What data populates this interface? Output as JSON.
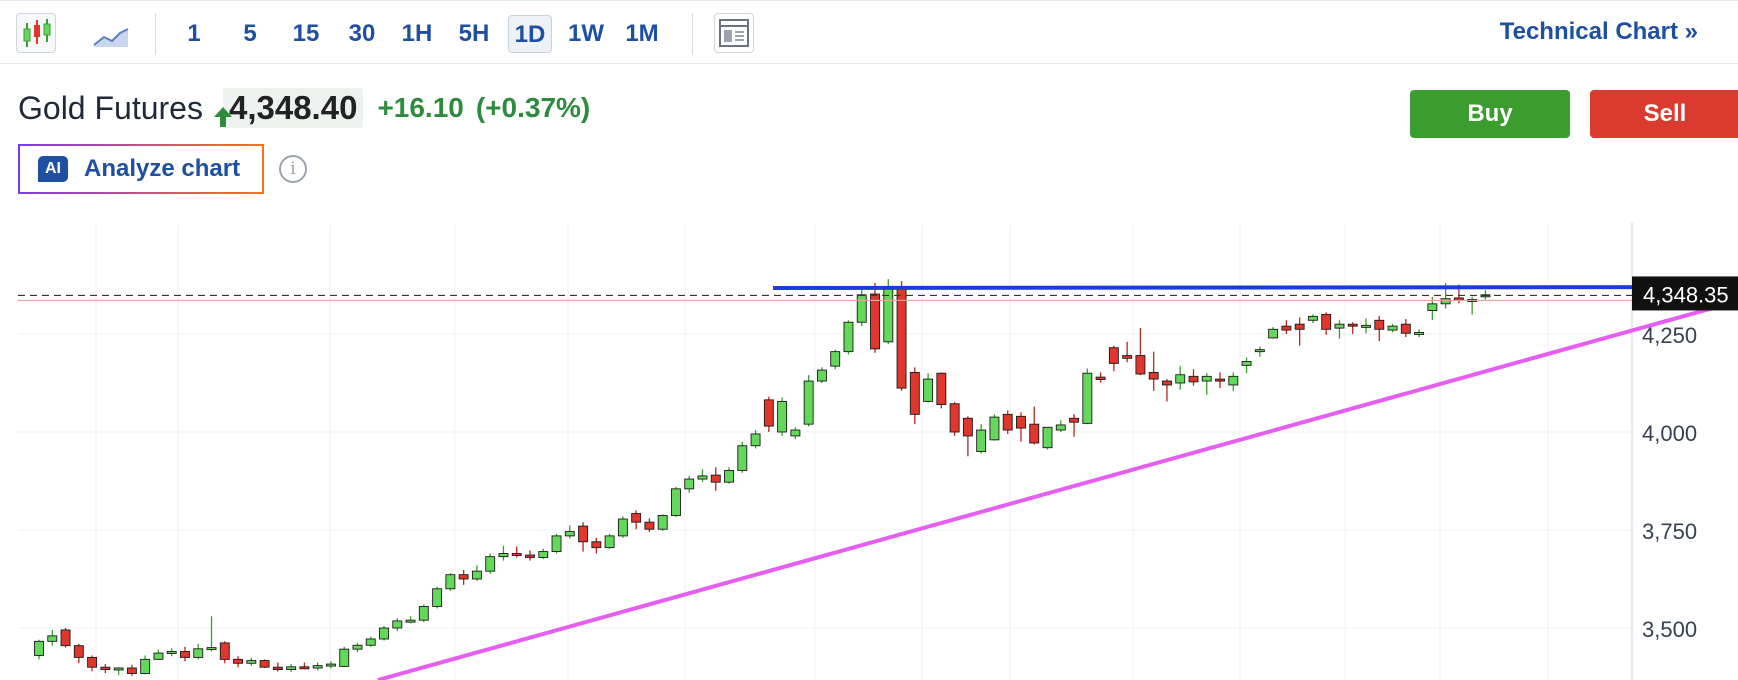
{
  "toolbar": {
    "candles_icon": "candlestick-icon",
    "area_icon": "area-chart-icon",
    "layout_icon": "layout-icon",
    "timeframes": [
      "1",
      "5",
      "15",
      "30",
      "1H",
      "5H",
      "1D",
      "1W",
      "1M"
    ],
    "active_timeframe": "1D",
    "technical_chart_label": "Technical Chart »"
  },
  "instrument": {
    "name": "Gold Futures",
    "price": "4,348.40",
    "change": "+16.10",
    "change_pct": "(+0.37%)",
    "direction": "up"
  },
  "actions": {
    "buy_label": "Buy",
    "sell_label": "Sell",
    "ai_badge": "AI",
    "analyze_label": "Analyze chart",
    "info_icon": "info-icon"
  },
  "colors": {
    "up": "#64d85a",
    "down": "#e0362c",
    "accent": "#1e4fa0",
    "buy": "#3c9d2f",
    "sell": "#db3a2f",
    "resistance_line": "#1c3bdc",
    "trend_line": "#e45ff0"
  },
  "chart_data": {
    "type": "candlestick",
    "title": "",
    "y_ticks": [
      "4,250",
      "4,000",
      "3,750",
      "3,500"
    ],
    "current_price_label": "4,348.35",
    "current_price": 4348.35,
    "grid": true,
    "candles": [
      [
        3430,
        3470,
        3420,
        3466
      ],
      [
        3466,
        3495,
        3455,
        3480
      ],
      [
        3495,
        3500,
        3450,
        3455
      ],
      [
        3455,
        3460,
        3410,
        3425
      ],
      [
        3425,
        3430,
        3390,
        3400
      ],
      [
        3400,
        3408,
        3385,
        3394
      ],
      [
        3394,
        3400,
        3380,
        3398
      ],
      [
        3398,
        3406,
        3378,
        3384
      ],
      [
        3384,
        3430,
        3382,
        3420
      ],
      [
        3420,
        3445,
        3418,
        3436
      ],
      [
        3436,
        3448,
        3428,
        3440
      ],
      [
        3440,
        3452,
        3415,
        3425
      ],
      [
        3425,
        3460,
        3420,
        3447
      ],
      [
        3447,
        3530,
        3440,
        3450
      ],
      [
        3462,
        3466,
        3410,
        3420
      ],
      [
        3420,
        3428,
        3400,
        3410
      ],
      [
        3410,
        3424,
        3403,
        3417
      ],
      [
        3417,
        3420,
        3398,
        3400
      ],
      [
        3400,
        3412,
        3389,
        3394
      ],
      [
        3394,
        3408,
        3388,
        3401
      ],
      [
        3401,
        3412,
        3395,
        3398
      ],
      [
        3398,
        3412,
        3392,
        3404
      ],
      [
        3404,
        3415,
        3397,
        3408
      ],
      [
        3402,
        3452,
        3400,
        3446
      ],
      [
        3446,
        3462,
        3438,
        3456
      ],
      [
        3456,
        3478,
        3452,
        3472
      ],
      [
        3472,
        3505,
        3468,
        3500
      ],
      [
        3500,
        3525,
        3492,
        3518
      ],
      [
        3518,
        3530,
        3512,
        3520
      ],
      [
        3520,
        3560,
        3515,
        3555
      ],
      [
        3555,
        3605,
        3550,
        3600
      ],
      [
        3600,
        3640,
        3595,
        3636
      ],
      [
        3636,
        3648,
        3610,
        3625
      ],
      [
        3625,
        3660,
        3620,
        3645
      ],
      [
        3645,
        3690,
        3638,
        3682
      ],
      [
        3682,
        3710,
        3672,
        3690
      ],
      [
        3690,
        3708,
        3680,
        3686
      ],
      [
        3686,
        3698,
        3672,
        3680
      ],
      [
        3680,
        3702,
        3676,
        3695
      ],
      [
        3695,
        3740,
        3690,
        3735
      ],
      [
        3735,
        3762,
        3728,
        3746
      ],
      [
        3760,
        3770,
        3695,
        3720
      ],
      [
        3720,
        3730,
        3690,
        3705
      ],
      [
        3705,
        3740,
        3702,
        3735
      ],
      [
        3735,
        3785,
        3730,
        3778
      ],
      [
        3792,
        3800,
        3752,
        3770
      ],
      [
        3770,
        3780,
        3745,
        3752
      ],
      [
        3752,
        3790,
        3748,
        3787
      ],
      [
        3787,
        3860,
        3783,
        3855
      ],
      [
        3855,
        3888,
        3845,
        3880
      ],
      [
        3880,
        3905,
        3872,
        3888
      ],
      [
        3890,
        3910,
        3850,
        3872
      ],
      [
        3872,
        3910,
        3868,
        3902
      ],
      [
        3902,
        3975,
        3896,
        3965
      ],
      [
        3965,
        4005,
        3958,
        3995
      ],
      [
        4082,
        4090,
        4000,
        4015
      ],
      [
        4000,
        4088,
        3990,
        4078
      ],
      [
        3990,
        4012,
        3982,
        4005
      ],
      [
        4020,
        4145,
        4014,
        4130
      ],
      [
        4130,
        4165,
        4125,
        4158
      ],
      [
        4168,
        4210,
        4160,
        4205
      ],
      [
        4205,
        4285,
        4198,
        4280
      ],
      [
        4280,
        4365,
        4270,
        4350
      ],
      [
        4352,
        4380,
        4202,
        4212
      ],
      [
        4230,
        4390,
        4224,
        4368
      ],
      [
        4368,
        4385,
        4105,
        4112
      ],
      [
        4152,
        4165,
        4020,
        4045
      ],
      [
        4078,
        4150,
        4075,
        4135
      ],
      [
        4150,
        4152,
        4060,
        4070
      ],
      [
        4072,
        4076,
        3990,
        4000
      ],
      [
        4035,
        4040,
        3938,
        3990
      ],
      [
        3950,
        4020,
        3945,
        4005
      ],
      [
        3980,
        4045,
        3978,
        4038
      ],
      [
        4045,
        4055,
        3995,
        4005
      ],
      [
        4040,
        4050,
        3975,
        4010
      ],
      [
        4020,
        4065,
        3968,
        3972
      ],
      [
        3960,
        4010,
        3955,
        4012
      ],
      [
        4005,
        4030,
        4000,
        4018
      ],
      [
        4035,
        4046,
        3988,
        4025
      ],
      [
        4022,
        4162,
        4020,
        4150
      ],
      [
        4140,
        4152,
        4126,
        4134
      ],
      [
        4215,
        4220,
        4155,
        4175
      ],
      [
        4195,
        4230,
        4178,
        4188
      ],
      [
        4195,
        4265,
        4145,
        4148
      ],
      [
        4152,
        4205,
        4105,
        4135
      ],
      [
        4130,
        4135,
        4078,
        4120
      ],
      [
        4125,
        4168,
        4108,
        4146
      ],
      [
        4142,
        4160,
        4118,
        4128
      ],
      [
        4130,
        4150,
        4095,
        4142
      ],
      [
        4135,
        4152,
        4112,
        4130
      ],
      [
        4120,
        4152,
        4104,
        4142
      ],
      [
        4170,
        4190,
        4150,
        4180
      ],
      [
        4205,
        4218,
        4192,
        4210
      ],
      [
        4240,
        4268,
        4238,
        4262
      ],
      [
        4270,
        4285,
        4250,
        4260
      ],
      [
        4275,
        4292,
        4220,
        4262
      ],
      [
        4285,
        4300,
        4278,
        4295
      ],
      [
        4300,
        4305,
        4248,
        4262
      ],
      [
        4265,
        4285,
        4238,
        4275
      ],
      [
        4275,
        4280,
        4250,
        4270
      ],
      [
        4268,
        4290,
        4252,
        4272
      ],
      [
        4285,
        4296,
        4232,
        4262
      ],
      [
        4260,
        4276,
        4254,
        4270
      ],
      [
        4275,
        4288,
        4242,
        4252
      ],
      [
        4252,
        4262,
        4242,
        4254
      ],
      [
        4310,
        4345,
        4286,
        4327
      ],
      [
        4327,
        4380,
        4315,
        4340
      ],
      [
        4342,
        4376,
        4328,
        4336
      ],
      [
        4335,
        4345,
        4300,
        4338
      ],
      [
        4345,
        4362,
        4338,
        4350
      ]
    ]
  }
}
